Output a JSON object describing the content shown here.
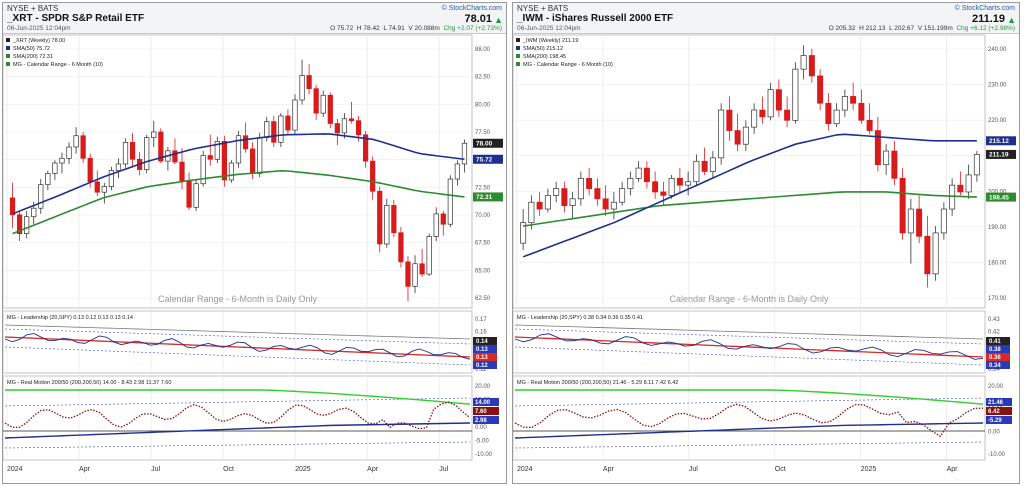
{
  "charts": {
    "left": {
      "exchange": "NYSE + BATS",
      "title": "_XRT - SPDR S&P Retail ETF",
      "date": "06-Jun-2025 12:04pm",
      "brand": "© StockCharts.com",
      "last": "78.01",
      "ohlc": [
        "O 75.72",
        "H 78.42",
        "L 74.91",
        "V 20.088m"
      ],
      "change": "Chg +2.07 (+2.73%)",
      "legend_price": [
        "_XRT (Weekly) 78.00",
        "SMA(50) 75.72",
        "SMA(200) 72.31",
        "MG - Calendar Range - 6 Month (10)"
      ],
      "watermark": "Calendar Range - 6-Month is Daily Only",
      "legend_lead": "MG - Leadership (20,SPY) 0.13 0.12 0.13 0.13 0.14",
      "legend_rm": "MG - Real Motion 200/50 (200,200,50) 14.00 - 8.43 2.98 11.37 7.60",
      "x_labels": [
        "2024",
        "Apr",
        "Jul",
        "Oct",
        "2025",
        "Apr",
        "Jul"
      ],
      "y_price": [
        "88.00",
        "82.50",
        "80.00",
        "77.50",
        "75.00",
        "72.50",
        "70.00",
        "67.50",
        "65.00",
        "62.50"
      ],
      "y_lead": [
        "0.17",
        "0.16",
        "0.15",
        "0.12",
        "0.11"
      ],
      "y_rm": [
        "20.00",
        "15.00",
        "5.00",
        "0.00",
        "-5.00",
        "-10.00"
      ],
      "tags_price": [
        {
          "v": "78.00",
          "c": "#222222",
          "t": "#ffffff"
        },
        {
          "v": "75.72",
          "c": "#1e2f8f",
          "t": "#ffffff"
        },
        {
          "v": "72.31",
          "c": "#2e8a2e",
          "t": "#ffffff"
        }
      ],
      "tags_lead": [
        {
          "v": "0.14",
          "c": "#222222",
          "t": "#ffffff"
        },
        {
          "v": "0.13",
          "c": "#2a39b8",
          "t": "#ffffff"
        },
        {
          "v": "0.13",
          "c": "#d42a2a",
          "t": "#ffffff"
        },
        {
          "v": "0.12",
          "c": "#2a39b8",
          "t": "#ffffff"
        }
      ],
      "tags_rm": [
        {
          "v": "14.00",
          "c": "#2a39b8",
          "t": "#ffffff"
        },
        {
          "v": "7.60",
          "c": "#8a1010",
          "t": "#ffffff"
        },
        {
          "v": "2.98",
          "c": "#2a39b8",
          "t": "#ffffff"
        }
      ]
    },
    "right": {
      "exchange": "NYSE + BATS",
      "title": "_IWM - iShares Russell 2000 ETF",
      "date": "06-Jun-2025 12:04pm",
      "brand": "© StockCharts.com",
      "last": "211.19",
      "ohlc": [
        "O 205.32",
        "H 212.13",
        "L 202.67",
        "V 151.199m"
      ],
      "change": "Chg +6.12 (+2.98%)",
      "legend_price": [
        "_IWM (Weekly) 211.19",
        "SMA(50) 215.12",
        "SMA(200) 198.45",
        "MG - Calendar Range - 6 Month (10)"
      ],
      "watermark": "Calendar Range - 6-Month is Daily Only",
      "legend_lead": "MG - Leadership (20,SPY) 0.38 0.34 0.36 0.35 0.41",
      "legend_rm": "MG - Real Motion 200/50 (200,200,50) 21.46 - 5.29 8.11 7.42 6.42",
      "x_labels": [
        "2024",
        "Apr",
        "Jul",
        "Oct",
        "2025",
        "Apr"
      ],
      "y_price": [
        "240.00",
        "230.00",
        "220.00",
        "210.00",
        "200.00",
        "190.00",
        "180.00",
        "170.00"
      ],
      "y_lead": [
        "0.43",
        "0.42",
        "0.39",
        "0.37",
        "0.34"
      ],
      "y_rm": [
        "20.00",
        "10.00",
        "0.00",
        "-10.00"
      ],
      "tags_price": [
        {
          "v": "215.12",
          "c": "#1e2f8f",
          "t": "#ffffff"
        },
        {
          "v": "211.19",
          "c": "#222222",
          "t": "#ffffff"
        },
        {
          "v": "198.45",
          "c": "#2e8a2e",
          "t": "#ffffff"
        }
      ],
      "tags_lead": [
        {
          "v": "0.41",
          "c": "#222222",
          "t": "#ffffff"
        },
        {
          "v": "0.38",
          "c": "#2a39b8",
          "t": "#ffffff"
        },
        {
          "v": "0.36",
          "c": "#d42a2a",
          "t": "#ffffff"
        },
        {
          "v": "0.34",
          "c": "#2a39b8",
          "t": "#ffffff"
        }
      ],
      "tags_rm": [
        {
          "v": "21.46",
          "c": "#2a39b8",
          "t": "#ffffff"
        },
        {
          "v": "6.42",
          "c": "#8a1010",
          "t": "#ffffff"
        },
        {
          "v": "-5.29",
          "c": "#2a39b8",
          "t": "#ffffff"
        }
      ]
    }
  },
  "chart_data": [
    {
      "type": "candlestick",
      "symbol": "_XRT",
      "title": "_XRT - SPDR S&P Retail ETF",
      "ylim": [
        60.5,
        89.5
      ],
      "sma50": [
        70.5,
        72.4,
        74.4,
        76.1,
        77.4,
        78.3,
        78.9,
        79.0,
        78.4,
        76.9,
        76.3
      ],
      "sma200": [
        68.4,
        70.3,
        72.2,
        73.4,
        74.1,
        74.7,
        75.1,
        74.6,
        73.9,
        72.9,
        72.3
      ],
      "candles": [
        [
          72.2,
          73.8,
          69.0,
          70.4
        ],
        [
          70.4,
          70.7,
          67.6,
          68.4
        ],
        [
          68.4,
          70.8,
          67.9,
          70.2
        ],
        [
          70.2,
          71.8,
          69.4,
          71.1
        ],
        [
          71.1,
          74.2,
          70.5,
          73.6
        ],
        [
          73.6,
          75.1,
          73.0,
          74.8
        ],
        [
          74.8,
          76.2,
          74.1,
          75.9
        ],
        [
          75.9,
          77.0,
          74.8,
          76.4
        ],
        [
          76.4,
          78.1,
          75.8,
          77.6
        ],
        [
          77.6,
          79.7,
          76.9,
          78.8
        ],
        [
          78.8,
          79.2,
          75.9,
          76.4
        ],
        [
          76.4,
          76.9,
          73.3,
          73.9
        ],
        [
          73.9,
          75.1,
          72.4,
          72.8
        ],
        [
          72.8,
          73.8,
          71.6,
          73.4
        ],
        [
          73.4,
          75.5,
          73.0,
          75.1
        ],
        [
          75.1,
          76.4,
          74.3,
          75.8
        ],
        [
          75.8,
          78.5,
          75.4,
          78.1
        ],
        [
          78.1,
          79.1,
          75.4,
          76.3
        ],
        [
          76.3,
          77.1,
          74.6,
          75.2
        ],
        [
          75.2,
          78.9,
          74.8,
          78.6
        ],
        [
          78.6,
          80.4,
          77.6,
          79.2
        ],
        [
          79.2,
          79.6,
          75.9,
          76.1
        ],
        [
          76.1,
          77.6,
          75.1,
          77.2
        ],
        [
          77.2,
          78.5,
          75.8,
          76.0
        ],
        [
          76.0,
          77.5,
          73.1,
          74.0
        ],
        [
          74.0,
          74.9,
          70.9,
          71.2
        ],
        [
          71.2,
          74.1,
          70.8,
          73.7
        ],
        [
          73.7,
          77.2,
          73.4,
          76.7
        ],
        [
          76.7,
          78.9,
          75.6,
          76.3
        ],
        [
          76.3,
          78.7,
          75.9,
          78.2
        ],
        [
          78.2,
          78.8,
          73.4,
          74.1
        ],
        [
          74.1,
          76.2,
          73.8,
          75.9
        ],
        [
          75.9,
          79.3,
          75.4,
          78.8
        ],
        [
          78.8,
          80.2,
          77.0,
          77.4
        ],
        [
          77.4,
          78.1,
          74.2,
          74.8
        ],
        [
          74.8,
          79.1,
          74.4,
          78.6
        ],
        [
          78.6,
          80.8,
          78.2,
          80.3
        ],
        [
          80.3,
          80.9,
          77.6,
          78.1
        ],
        [
          78.1,
          81.2,
          77.6,
          80.9
        ],
        [
          80.9,
          81.6,
          79.0,
          79.4
        ],
        [
          79.4,
          83.2,
          79.0,
          82.6
        ],
        [
          82.6,
          86.9,
          82.1,
          85.2
        ],
        [
          85.2,
          86.4,
          83.2,
          83.8
        ],
        [
          83.8,
          84.2,
          80.5,
          81.2
        ],
        [
          81.2,
          83.6,
          80.8,
          83.1
        ],
        [
          83.1,
          83.4,
          79.6,
          80.1
        ],
        [
          80.1,
          80.6,
          77.8,
          79.1
        ],
        [
          79.1,
          81.2,
          78.5,
          80.6
        ],
        [
          80.6,
          82.4,
          80.1,
          80.4
        ],
        [
          80.4,
          80.9,
          78.2,
          78.9
        ],
        [
          78.9,
          79.3,
          75.4,
          76.1
        ],
        [
          76.1,
          76.6,
          72.0,
          72.9
        ],
        [
          72.9,
          73.4,
          66.4,
          67.3
        ],
        [
          67.3,
          72.1,
          66.9,
          71.4
        ],
        [
          71.4,
          72.0,
          68.0,
          68.5
        ],
        [
          68.5,
          69.1,
          64.8,
          65.4
        ],
        [
          65.4,
          66.0,
          61.2,
          62.8
        ],
        [
          62.8,
          66.1,
          62.1,
          65.2
        ],
        [
          65.2,
          66.8,
          63.8,
          64.1
        ],
        [
          64.1,
          68.4,
          63.9,
          68.1
        ],
        [
          68.1,
          71.2,
          67.6,
          70.5
        ],
        [
          70.5,
          70.8,
          68.2,
          69.4
        ],
        [
          69.4,
          74.6,
          69.1,
          74.2
        ],
        [
          74.2,
          76.2,
          73.5,
          75.8
        ],
        [
          75.8,
          78.4,
          74.9,
          78.0
        ]
      ]
    },
    {
      "type": "candlestick",
      "symbol": "_IWM",
      "title": "_IWM - iShares Russell 2000 ETF",
      "ylim": [
        166,
        246
      ],
      "sma50": [
        181,
        186,
        191,
        197,
        203,
        209,
        214,
        217,
        216,
        215,
        215
      ],
      "sma200": [
        190,
        192,
        194,
        196,
        197,
        198,
        199,
        200,
        200,
        199,
        198.5
      ],
      "candles": [
        [
          185,
          195,
          183,
          191
        ],
        [
          191,
          199,
          189,
          197
        ],
        [
          197,
          200,
          193,
          195
        ],
        [
          195,
          201,
          194,
          199
        ],
        [
          199,
          203,
          197,
          201
        ],
        [
          201,
          203,
          194,
          196
        ],
        [
          196,
          200,
          192,
          198
        ],
        [
          198,
          206,
          196,
          204
        ],
        [
          204,
          207,
          199,
          201
        ],
        [
          201,
          204,
          196,
          198
        ],
        [
          198,
          202,
          193,
          195
        ],
        [
          195,
          200,
          192,
          197
        ],
        [
          197,
          203,
          196,
          201
        ],
        [
          201,
          206,
          199,
          204
        ],
        [
          204,
          209,
          203,
          207
        ],
        [
          207,
          209,
          201,
          203
        ],
        [
          203,
          206,
          198,
          200
        ],
        [
          200,
          203,
          196,
          199
        ],
        [
          199,
          205,
          198,
          204
        ],
        [
          204,
          207,
          200,
          202
        ],
        [
          202,
          206,
          199,
          203
        ],
        [
          203,
          211,
          202,
          209
        ],
        [
          209,
          213,
          205,
          206
        ],
        [
          206,
          212,
          204,
          210
        ],
        [
          210,
          226,
          208,
          224
        ],
        [
          224,
          228,
          215,
          218
        ],
        [
          218,
          223,
          212,
          214
        ],
        [
          214,
          221,
          212,
          219
        ],
        [
          219,
          226,
          217,
          224
        ],
        [
          224,
          228,
          220,
          222
        ],
        [
          222,
          232,
          221,
          230
        ],
        [
          230,
          233,
          222,
          224
        ],
        [
          224,
          228,
          219,
          221
        ],
        [
          221,
          238,
          220,
          236
        ],
        [
          236,
          243,
          233,
          240
        ],
        [
          240,
          242,
          232,
          234
        ],
        [
          234,
          236,
          224,
          226
        ],
        [
          226,
          229,
          218,
          220
        ],
        [
          220,
          226,
          219,
          224
        ],
        [
          224,
          230,
          222,
          228
        ],
        [
          228,
          232,
          224,
          226
        ],
        [
          226,
          230,
          220,
          221
        ],
        [
          221,
          226,
          217,
          218
        ],
        [
          218,
          222,
          206,
          208
        ],
        [
          208,
          214,
          205,
          212
        ],
        [
          212,
          215,
          202,
          204
        ],
        [
          204,
          207,
          186,
          188
        ],
        [
          188,
          198,
          179,
          195
        ],
        [
          195,
          199,
          185,
          187
        ],
        [
          187,
          193,
          172,
          176
        ],
        [
          176,
          190,
          174,
          188
        ],
        [
          188,
          197,
          186,
          195
        ],
        [
          195,
          204,
          193,
          202
        ],
        [
          202,
          206,
          199,
          200
        ],
        [
          200,
          208,
          198,
          205
        ],
        [
          205,
          212,
          203,
          211
        ]
      ]
    }
  ]
}
